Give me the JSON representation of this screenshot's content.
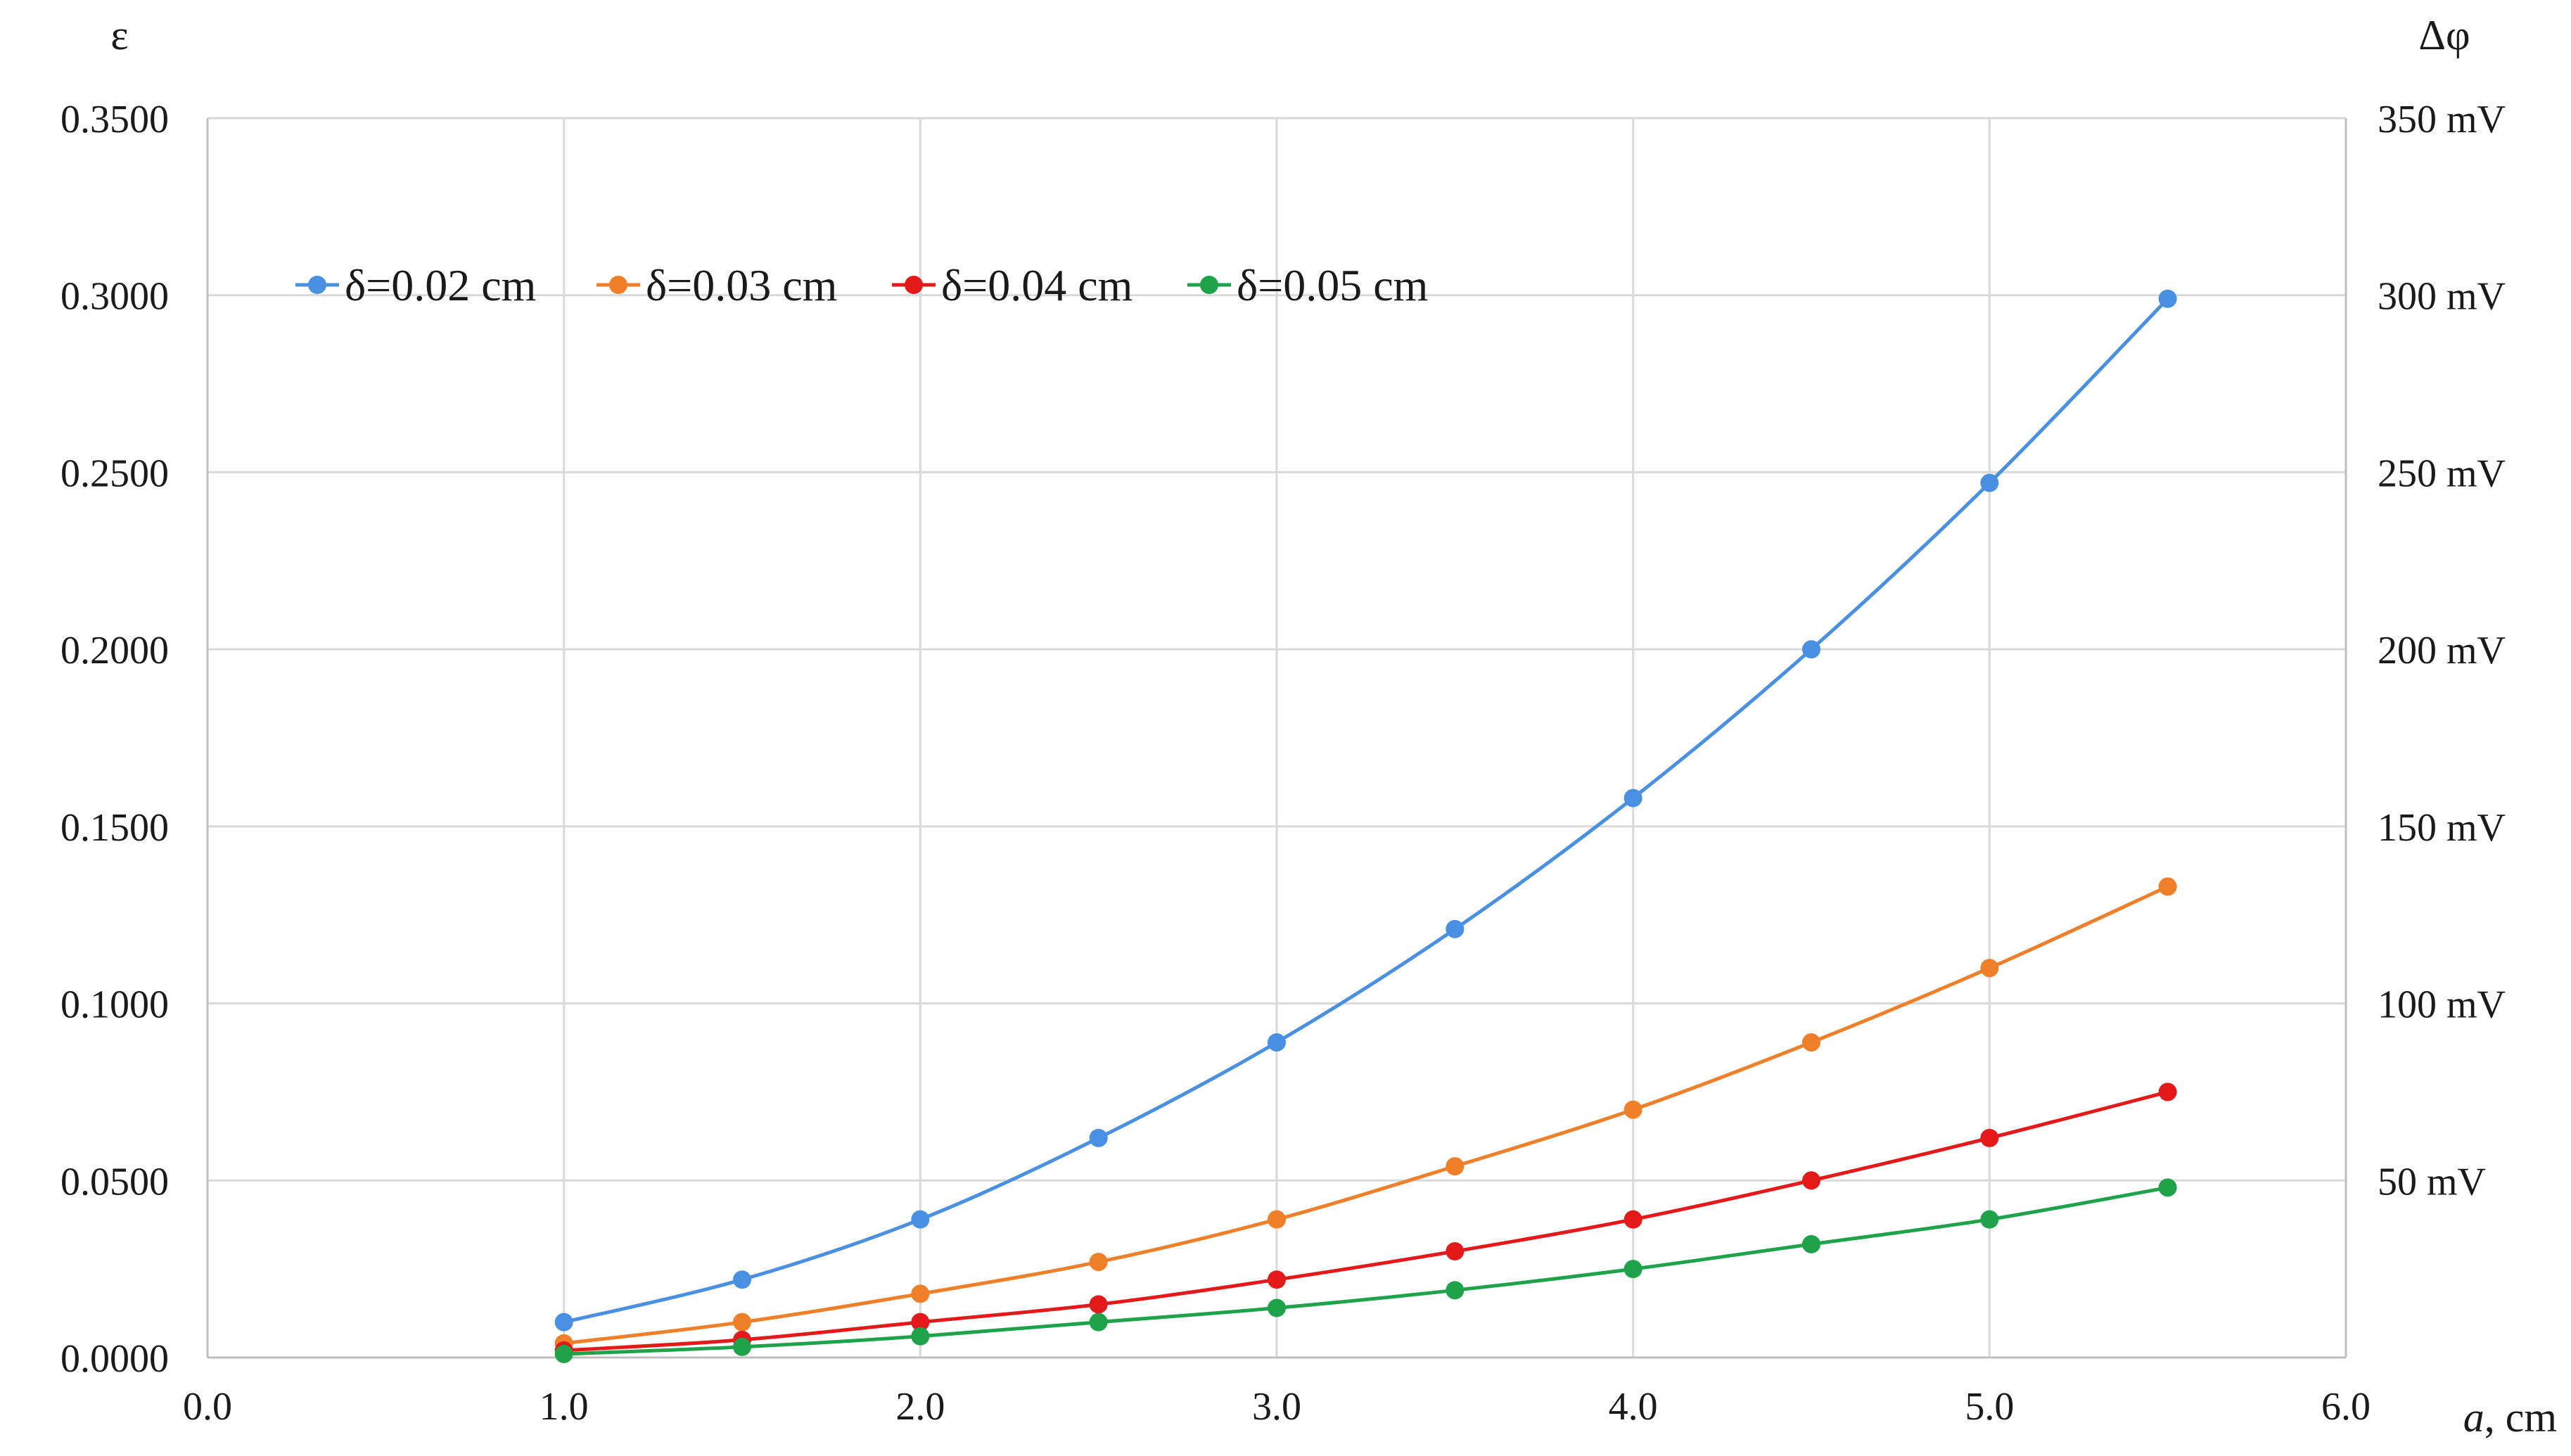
{
  "chart_data": {
    "type": "line",
    "smooth": true,
    "legend_position": "top-left",
    "grid": true,
    "x_axis": {
      "label_main": "a",
      "label_unit": ", cm",
      "range": [
        0,
        6
      ],
      "ticks": [
        "0.0",
        "1.0",
        "2.0",
        "3.0",
        "4.0",
        "5.0",
        "6.0"
      ]
    },
    "y_axis_left": {
      "label": "ε",
      "range": [
        0,
        0.35
      ],
      "ticks": [
        "0.0000",
        "0.0500",
        "0.1000",
        "0.1500",
        "0.2000",
        "0.2500",
        "0.3000",
        "0.3500"
      ]
    },
    "y_axis_right": {
      "label": "Δφ",
      "range": [
        0,
        350
      ],
      "ticks": [
        "50 mV",
        "100 mV",
        "150 mV",
        "200 mV",
        "250 mV",
        "300 mV",
        "350 mV"
      ]
    },
    "x": [
      1.0,
      1.5,
      2.0,
      2.5,
      3.0,
      3.5,
      4.0,
      4.5,
      5.0,
      5.5
    ],
    "series": [
      {
        "name": "δ=0.02 cm",
        "color": "#4a90e2",
        "values": [
          0.01,
          0.022,
          0.039,
          0.062,
          0.089,
          0.121,
          0.158,
          0.2,
          0.247,
          0.299
        ]
      },
      {
        "name": "δ=0.03 cm",
        "color": "#f07f2a",
        "values": [
          0.004,
          0.01,
          0.018,
          0.027,
          0.039,
          0.054,
          0.07,
          0.089,
          0.11,
          0.133
        ]
      },
      {
        "name": "δ=0.04 cm",
        "color": "#e41a1a",
        "values": [
          0.002,
          0.005,
          0.01,
          0.015,
          0.022,
          0.03,
          0.039,
          0.05,
          0.062,
          0.075
        ]
      },
      {
        "name": "δ=0.05 cm",
        "color": "#1fa34a",
        "values": [
          0.001,
          0.003,
          0.006,
          0.01,
          0.014,
          0.019,
          0.025,
          0.032,
          0.039,
          0.048
        ]
      }
    ]
  }
}
